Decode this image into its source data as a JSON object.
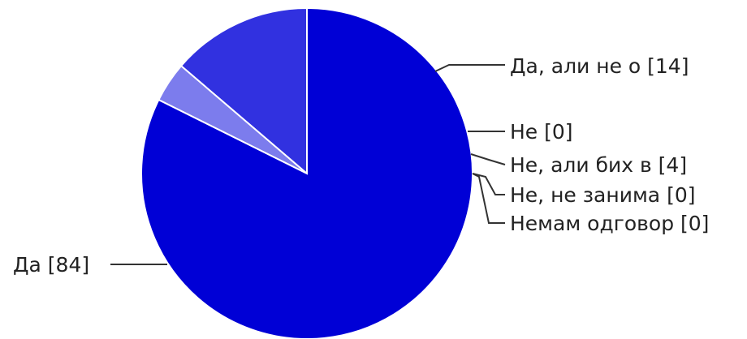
{
  "chart_data": {
    "type": "pie",
    "start_angle_deg": 90,
    "direction": "counterclockwise",
    "slices": [
      {
        "label": "Да, али не о [14]",
        "category": "Да, али не о",
        "value": 14,
        "color": "#3131e0"
      },
      {
        "label": "Не [0]",
        "category": "Не",
        "value": 0,
        "color": "#4a4ae6"
      },
      {
        "label": "Не, али бих в [4]",
        "category": "Не, али бих в",
        "value": 4,
        "color": "#7c7ced"
      },
      {
        "label": "Не, не занима [0]",
        "category": "Не, не занима",
        "value": 0,
        "color": "#9a9af2"
      },
      {
        "label": "Немам одговор [0]",
        "category": "Немам одговор",
        "value": 0,
        "color": "#b5b5f6"
      },
      {
        "label": "Да [84]",
        "category": "Да",
        "value": 84,
        "color": "#0000d6"
      }
    ]
  }
}
